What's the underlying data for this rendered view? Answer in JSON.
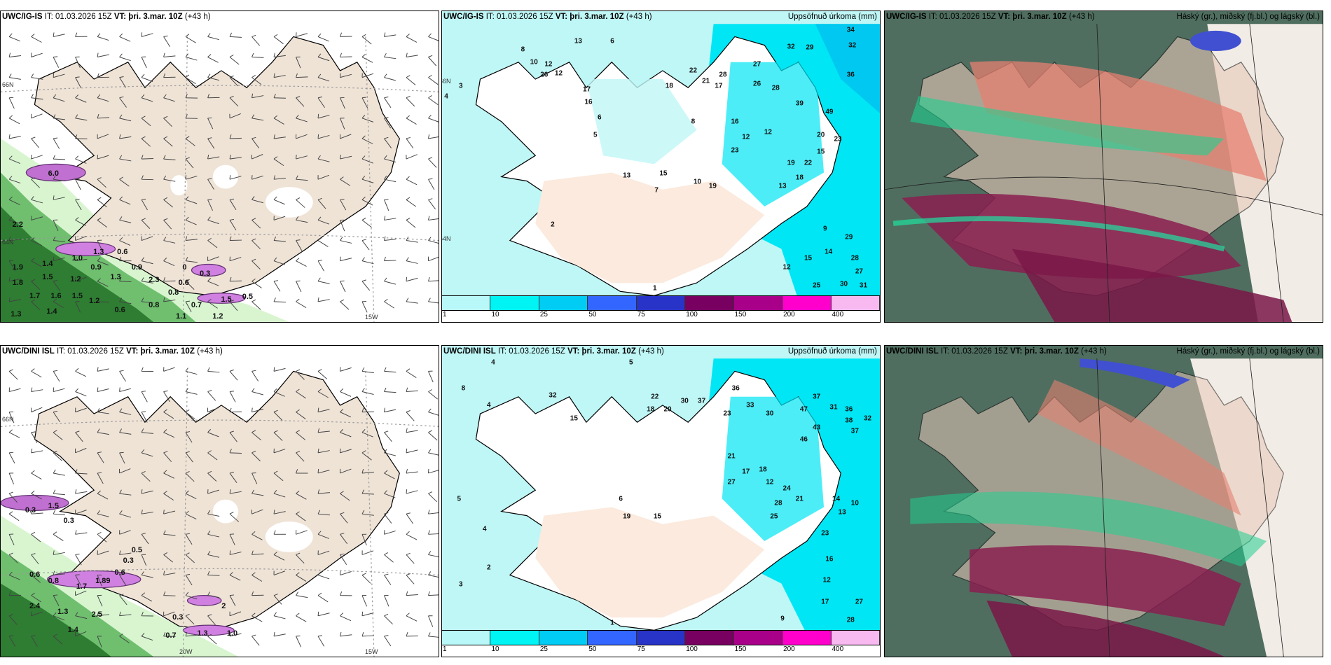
{
  "panels": [
    {
      "model": "UWC/IG-IS",
      "it_label": "IT: 01.03.2026 15Z",
      "vt_label": "VT: þri. 3.mar. 10Z",
      "lead": "(+43 h)"
    },
    {
      "model": "UWC/IG-IS",
      "it_label": "IT: 01.03.2026 15Z",
      "vt_label": "VT: þri. 3.mar. 10Z",
      "lead": "(+43 h)",
      "right_title": "Uppsöfnuð úrkoma (mm)"
    },
    {
      "model": "UWC/IG-IS",
      "it_label": "IT: 01.03.2026 15Z",
      "vt_label": "VT: þri. 3.mar. 10Z",
      "lead": "(+43 h)",
      "right_title": "Háský (gr.), miðský (fj.bl.) og lágský (bl.)"
    },
    {
      "model": "UWC/DINI ISL",
      "it_label": "IT: 01.03.2026 15Z",
      "vt_label": "VT: þri. 3.mar. 10Z",
      "lead": "(+43 h)"
    },
    {
      "model": "UWC/DINI ISL",
      "it_label": "IT: 01.03.2026 15Z",
      "vt_label": "VT: þri. 3.mar. 10Z",
      "lead": "(+43 h)",
      "right_title": "Uppsöfnuð úrkoma (mm)"
    },
    {
      "model": "UWC/DINI ISL",
      "it_label": "IT: 01.03.2026 15Z",
      "vt_label": "VT: þri. 3.mar. 10Z",
      "lead": "(+43 h)",
      "right_title": "Háský (gr.), miðský (fj.bl.) og lágský (bl.)"
    }
  ],
  "geo_labels": {
    "lat66": "66N",
    "lat64": "64N",
    "lon15": "15W",
    "lon20": "20W"
  },
  "legend": {
    "ticks": [
      "1",
      "10",
      "25",
      "50",
      "75",
      "100",
      "150",
      "200",
      "400"
    ],
    "colors": [
      "#b8f8f8",
      "#00f4f4",
      "#00ccf4",
      "#3366ff",
      "#2833c8",
      "#780060",
      "#a80088",
      "#ff00cc",
      "#f8b8f0"
    ]
  },
  "wind_values_top": [
    "6.0",
    "2.2",
    "1.9",
    "1.8",
    "1.4",
    "1.5",
    "1.7",
    "1.6",
    "1.5",
    "1.2",
    "1.3",
    "1.4",
    "1.2",
    "0.6",
    "0.9",
    "1.3",
    "1.0",
    "0.8",
    "1.3",
    "0.9",
    "0.6",
    "2.3",
    "0.6",
    "0.8",
    "0.7",
    "0",
    "0.3",
    "1.1",
    "1.2",
    "1.5",
    "0.5"
  ],
  "wind_values_bottom": [
    "0.3",
    "1.5",
    "0.3",
    "0.6",
    "0.8",
    "1.7",
    "1.89",
    "0.6",
    "0.3",
    "0.5",
    "2.4",
    "1.3",
    "2.5",
    "1.4",
    "0.3",
    "0.7",
    "1.3",
    "1.0",
    "2"
  ],
  "precip_values_top": [
    "13",
    "6",
    "8",
    "10",
    "12",
    "26",
    "12",
    "17",
    "16",
    "18",
    "22",
    "21",
    "28",
    "17",
    "27",
    "26",
    "28",
    "32",
    "29",
    "34",
    "32",
    "36",
    "49",
    "39",
    "20",
    "23",
    "15",
    "22",
    "19",
    "23",
    "12",
    "16",
    "12",
    "18",
    "13",
    "10",
    "19",
    "8",
    "15",
    "13",
    "7",
    "6",
    "5",
    "4",
    "3",
    "2",
    "1",
    "9",
    "29",
    "28",
    "27",
    "30",
    "31",
    "25",
    "14",
    "15",
    "12"
  ],
  "precip_values_bottom": [
    "4",
    "5",
    "8",
    "4",
    "32",
    "15",
    "22",
    "18",
    "20",
    "30",
    "37",
    "36",
    "23",
    "33",
    "30",
    "37",
    "31",
    "47",
    "36",
    "38",
    "32",
    "46",
    "43",
    "37",
    "21",
    "17",
    "27",
    "18",
    "12",
    "24",
    "28",
    "25",
    "21",
    "14",
    "13",
    "10",
    "23",
    "16",
    "12",
    "17",
    "27",
    "28",
    "9",
    "15",
    "19",
    "6",
    "5",
    "3",
    "2",
    "1",
    "4"
  ]
}
